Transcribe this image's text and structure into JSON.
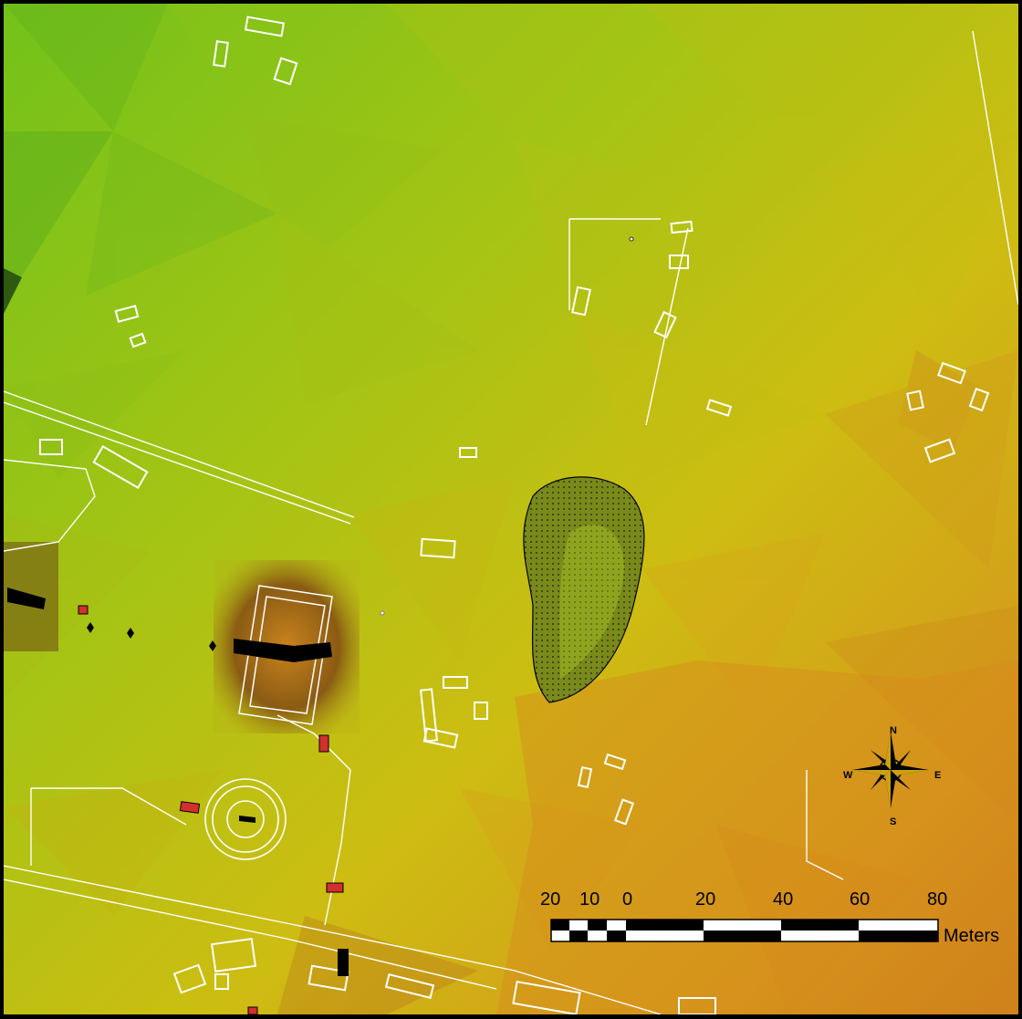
{
  "map": {
    "scale_bar": {
      "ticks": [
        "20",
        "10",
        "0",
        "20",
        "40",
        "60",
        "80"
      ],
      "unit": "Meters"
    },
    "north_arrow": {
      "north": "N",
      "south": "S",
      "east": "E",
      "west": "W"
    },
    "colors": {
      "terrain_high": "#7ec61a",
      "terrain_mid": "#c5c90f",
      "terrain_low": "#d4961a",
      "features": "#ffffff",
      "markers": "#d32f2f"
    }
  }
}
